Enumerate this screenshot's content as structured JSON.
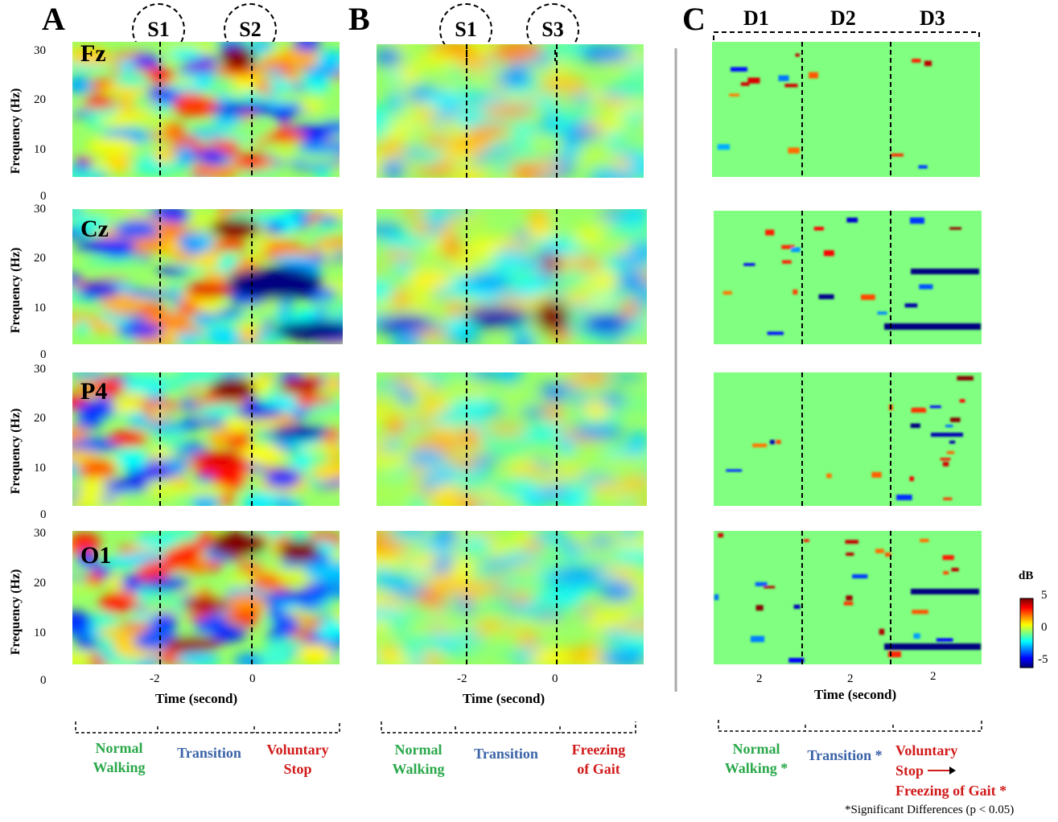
{
  "panels": {
    "A": "A",
    "B": "B",
    "C": "C"
  },
  "channels": [
    "Fz",
    "Cz",
    "P4",
    "O1"
  ],
  "y_axis": {
    "label": "Frequency (Hz)",
    "ticks": [
      "30",
      "20",
      "10",
      "0"
    ]
  },
  "x_axis_label": "Time (second)",
  "markers": {
    "s1": "S1",
    "s2": "S2",
    "s3": "S3"
  },
  "x_ticks": {
    "minus2": "-2",
    "zero": "0",
    "two": "2"
  },
  "segments_C_top": {
    "d1": "D1",
    "d2": "D2",
    "d3": "D3"
  },
  "phase_labels_A": {
    "normal_1": "Normal",
    "normal_2": "Walking",
    "transition": "Transition",
    "stop_1": "Voluntary",
    "stop_2": "Stop"
  },
  "phase_labels_B": {
    "normal_1": "Normal",
    "normal_2": "Walking",
    "transition": "Transition",
    "fog_1": "Freezing",
    "fog_2": "of Gait"
  },
  "phase_labels_C": {
    "normal_1": "Normal",
    "normal_2": "Walking *",
    "transition": "Transition *",
    "vs_1": "Voluntary",
    "vs_2": "Stop",
    "vs_3": "Freezing of Gait *"
  },
  "colorbar": {
    "unit": "dB",
    "ticks": [
      "5",
      "0",
      "-5"
    ]
  },
  "footnote": "*Significant Differences  (p < 0.05)",
  "colors": {
    "normal": "#2aa84a",
    "transition": "#3a63a8",
    "stop": "#d11a1a"
  },
  "chart_data": {
    "type": "heatmap",
    "colormap": "jet",
    "value_range": [
      -5,
      5
    ],
    "frequency_range_hz": [
      0,
      30
    ],
    "time_marker_values_s": [
      -2,
      0
    ],
    "panels": [
      "A",
      "B",
      "C"
    ]
  }
}
